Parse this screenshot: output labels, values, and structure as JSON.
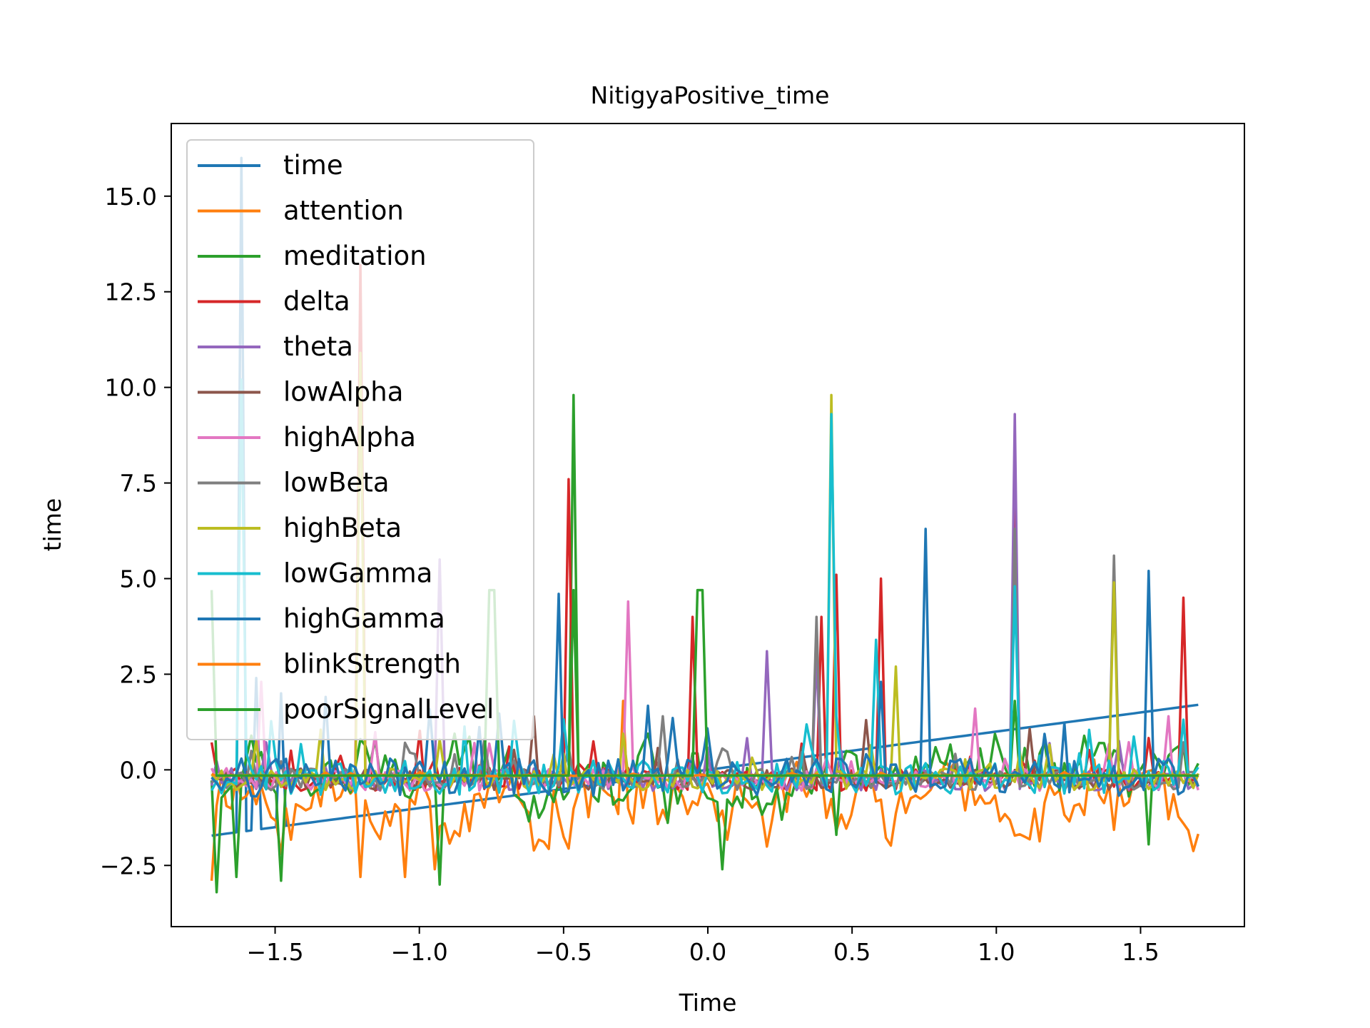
{
  "chart_data": {
    "type": "line",
    "title": "NitigyaPositive_time",
    "xlabel": "Time",
    "ylabel": "time",
    "xlim": [
      -1.86,
      1.86
    ],
    "ylim": [
      -4.1,
      16.9
    ],
    "x_ticks": [
      -1.5,
      -1.0,
      -0.5,
      0.0,
      0.5,
      1.0,
      1.5
    ],
    "x_tick_labels": [
      "−1.5",
      "−1.0",
      "−0.5",
      "0.0",
      "0.5",
      "1.0",
      "1.5"
    ],
    "y_ticks": [
      -2.5,
      0.0,
      2.5,
      5.0,
      7.5,
      10.0,
      12.5,
      15.0
    ],
    "y_tick_labels": [
      "−2.5",
      "0.0",
      "2.5",
      "5.0",
      "7.5",
      "10.0",
      "12.5",
      "15.0"
    ],
    "grid": false,
    "legend_position": "upper-left",
    "x_range": [
      -1.72,
      1.7
    ],
    "samples_per_series": 200,
    "series": [
      {
        "name": "time",
        "color": "#1f77b4",
        "baseline": -0.15,
        "noise": 0.1,
        "trend": [
          -1.72,
          1.7
        ],
        "spikes": [
          [
            -1.62,
            16.0
          ],
          [
            -1.56,
            2.4
          ],
          [
            -1.48,
            2.0
          ]
        ]
      },
      {
        "name": "attention",
        "color": "#ff7f0e",
        "baseline": -0.9,
        "noise": 0.8,
        "walk": true,
        "spikes": [
          [
            -1.72,
            -2.9
          ],
          [
            -1.2,
            -2.8
          ],
          [
            -1.05,
            -2.8
          ],
          [
            -0.95,
            -2.6
          ],
          [
            -0.3,
            1.8
          ]
        ]
      },
      {
        "name": "meditation",
        "color": "#2ca02c",
        "baseline": -0.2,
        "noise": 0.75,
        "walk": true,
        "spikes": [
          [
            -1.71,
            -3.2
          ],
          [
            -1.63,
            -2.8
          ],
          [
            -1.48,
            -2.9
          ],
          [
            -0.93,
            -3.0
          ],
          [
            -0.46,
            9.8
          ],
          [
            0.05,
            -2.6
          ],
          [
            0.45,
            -1.7
          ],
          [
            1.06,
            1.8
          ],
          [
            1.52,
            -1.95
          ]
        ]
      },
      {
        "name": "delta",
        "color": "#d62728",
        "baseline": -0.25,
        "noise": 0.3,
        "spikes": [
          [
            -1.2,
            13.2
          ],
          [
            -0.48,
            7.6
          ],
          [
            -0.05,
            4.0
          ],
          [
            0.39,
            4.0
          ],
          [
            0.45,
            5.1
          ],
          [
            0.6,
            5.0
          ],
          [
            1.06,
            7.1
          ],
          [
            1.64,
            4.5
          ]
        ]
      },
      {
        "name": "theta",
        "color": "#9467bd",
        "baseline": -0.25,
        "noise": 0.3,
        "spikes": [
          [
            -0.93,
            5.5
          ],
          [
            0.2,
            3.1
          ],
          [
            0.38,
            3.0
          ],
          [
            1.06,
            9.3
          ]
        ]
      },
      {
        "name": "lowAlpha",
        "color": "#8c564b",
        "baseline": -0.25,
        "noise": 0.28,
        "spikes": [
          [
            -0.6,
            1.4
          ],
          [
            0.55,
            1.3
          ]
        ]
      },
      {
        "name": "highAlpha",
        "color": "#e377c2",
        "baseline": -0.25,
        "noise": 0.3,
        "spikes": [
          [
            -1.55,
            2.3
          ],
          [
            -0.28,
            4.4
          ],
          [
            0.92,
            1.6
          ],
          [
            1.6,
            1.4
          ]
        ]
      },
      {
        "name": "lowBeta",
        "color": "#7f7f7f",
        "baseline": -0.25,
        "noise": 0.28,
        "spikes": [
          [
            0.38,
            4.0
          ],
          [
            1.06,
            6.3
          ],
          [
            1.4,
            5.6
          ],
          [
            -0.15,
            1.4
          ]
        ]
      },
      {
        "name": "highBeta",
        "color": "#bcbd22",
        "baseline": -0.25,
        "noise": 0.28,
        "spikes": [
          [
            -1.2,
            10.9
          ],
          [
            0.42,
            9.8
          ],
          [
            0.65,
            2.7
          ],
          [
            1.4,
            4.9
          ]
        ]
      },
      {
        "name": "lowGamma",
        "color": "#17becf",
        "baseline": -0.2,
        "noise": 0.45,
        "spikes": [
          [
            -1.62,
            10.2
          ],
          [
            0.42,
            9.3
          ],
          [
            0.58,
            3.4
          ],
          [
            1.06,
            4.8
          ]
        ]
      },
      {
        "name": "highGamma",
        "color": "#1f77b4",
        "baseline": -0.2,
        "noise": 0.5,
        "spikes": [
          [
            -0.52,
            4.6
          ],
          [
            0.75,
            6.3
          ],
          [
            0.6,
            2.3
          ],
          [
            1.52,
            5.2
          ]
        ]
      },
      {
        "name": "blinkStrength",
        "color": "#ff7f0e",
        "baseline": -0.15,
        "noise": 0.02,
        "spikes": []
      },
      {
        "name": "poorSignalLevel",
        "color": "#2ca02c",
        "baseline": -0.15,
        "noise": 0.0,
        "spikes": [
          [
            -1.72,
            4.7
          ],
          [
            -0.76,
            4.7
          ],
          [
            -0.74,
            4.7
          ],
          [
            -0.47,
            4.7
          ],
          [
            -0.03,
            4.7
          ],
          [
            -0.02,
            4.7
          ]
        ]
      }
    ]
  }
}
